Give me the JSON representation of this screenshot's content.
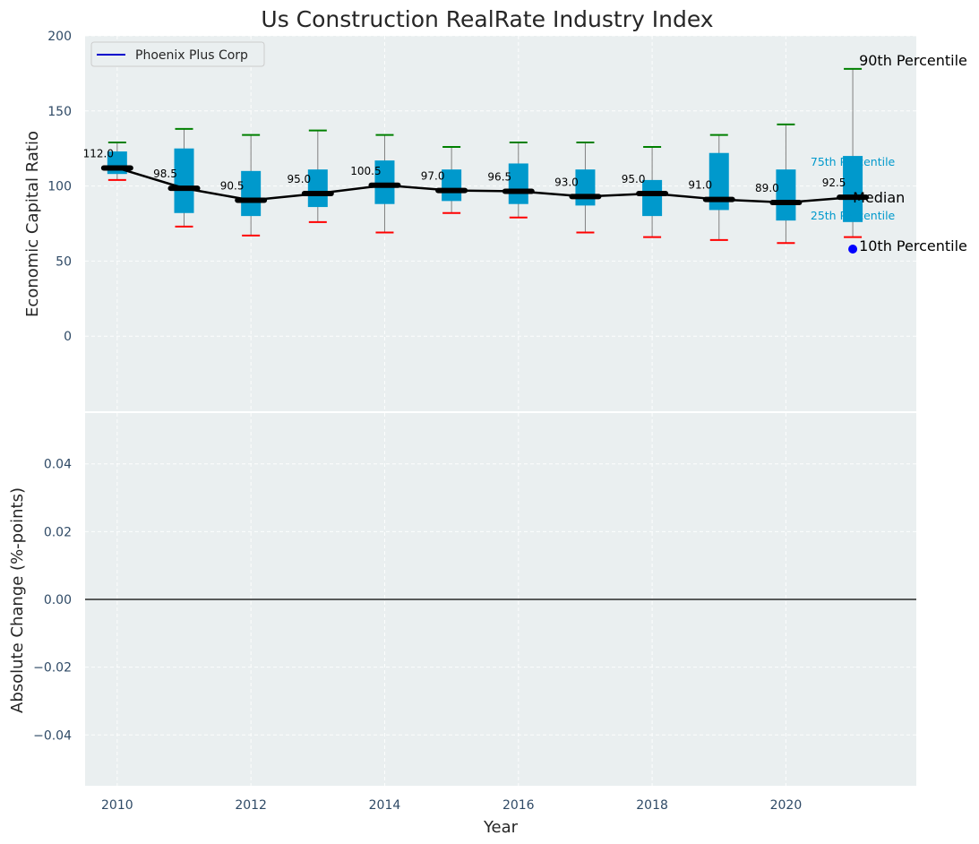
{
  "title": "Us Construction RealRate Industry Index",
  "colors": {
    "panel_bg": "#eaeff0",
    "box": "#0099cc",
    "whisker_line": "#808080",
    "upper_cap": "#008000",
    "lower_cap": "#ff0000",
    "median": "#000000",
    "legend_line": "#0000cc",
    "marker": "#0000ff",
    "zero_line": "#000000"
  },
  "legend": {
    "label": "Phoenix Plus Corp",
    "position": "upper-left"
  },
  "chart_data": [
    {
      "type": "box",
      "ylabel": "Economic Capital Ratio",
      "xlabel": "",
      "ylim": [
        -50,
        200
      ],
      "yticks": [
        0,
        50,
        100,
        150,
        200
      ],
      "xlim": [
        2009.52,
        2021.95
      ],
      "grid": true,
      "x": [
        2010,
        2011,
        2012,
        2013,
        2014,
        2015,
        2016,
        2017,
        2018,
        2019,
        2020,
        2021
      ],
      "median": [
        112.0,
        98.5,
        90.5,
        95.0,
        100.5,
        97.0,
        96.5,
        93.0,
        95.0,
        91.0,
        89.0,
        92.5
      ],
      "median_labels": [
        "112.0",
        "98.5",
        "90.5",
        "95.0",
        "100.5",
        "97.0",
        "96.5",
        "93.0",
        "95.0",
        "91.0",
        "89.0",
        "92.5"
      ],
      "q25": [
        108,
        82,
        80,
        86,
        88,
        90,
        88,
        87,
        80,
        84,
        77,
        76
      ],
      "q75": [
        123,
        125,
        110,
        111,
        117,
        111,
        115,
        111,
        104,
        122,
        111,
        120
      ],
      "p10": [
        104,
        73,
        67,
        76,
        69,
        82,
        79,
        69,
        66,
        64,
        62,
        66
      ],
      "p90": [
        129,
        138,
        134,
        137,
        134,
        126,
        129,
        129,
        126,
        134,
        141,
        178
      ],
      "marker": {
        "x": 2021,
        "y": 58
      },
      "annotations": {
        "p90": "90th Percentile",
        "p75": "75th Percentile",
        "median": "Median",
        "p25": "25th Percentile",
        "p10": "10th Percentile"
      }
    },
    {
      "type": "line",
      "ylabel": "Absolute Change (%-points)",
      "xlabel": "Year",
      "ylim": [
        -0.055,
        0.055
      ],
      "yticks": [
        -0.04,
        -0.02,
        0.0,
        0.02,
        0.04
      ],
      "ytick_labels": [
        "−0.04",
        "−0.02",
        "0.00",
        "0.02",
        "0.04"
      ],
      "xlim": [
        2009.52,
        2021.95
      ],
      "xticks": [
        2010,
        2012,
        2014,
        2016,
        2018,
        2020
      ],
      "grid": true,
      "reference_line_y": 0
    }
  ]
}
